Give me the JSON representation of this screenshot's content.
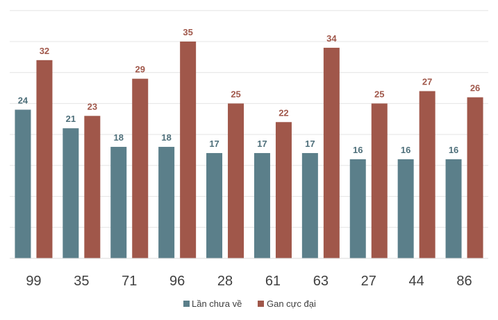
{
  "chart_data": {
    "type": "bar",
    "title": "",
    "xlabel": "",
    "ylabel": "",
    "ylim": [
      0,
      35
    ],
    "grid": true,
    "legend_position": "bottom",
    "categories": [
      "99",
      "35",
      "71",
      "96",
      "28",
      "61",
      "63",
      "27",
      "44",
      "86"
    ],
    "series": [
      {
        "name": "Lần chưa về",
        "color": "#5b7f8a",
        "label_color": "#4e6f7a",
        "values": [
          24,
          21,
          18,
          18,
          17,
          17,
          17,
          16,
          16,
          16
        ]
      },
      {
        "name": "Gan cực đại",
        "color": "#a0574a",
        "label_color": "#a0574a",
        "values": [
          32,
          23,
          29,
          35,
          25,
          22,
          34,
          25,
          27,
          26
        ]
      }
    ]
  }
}
